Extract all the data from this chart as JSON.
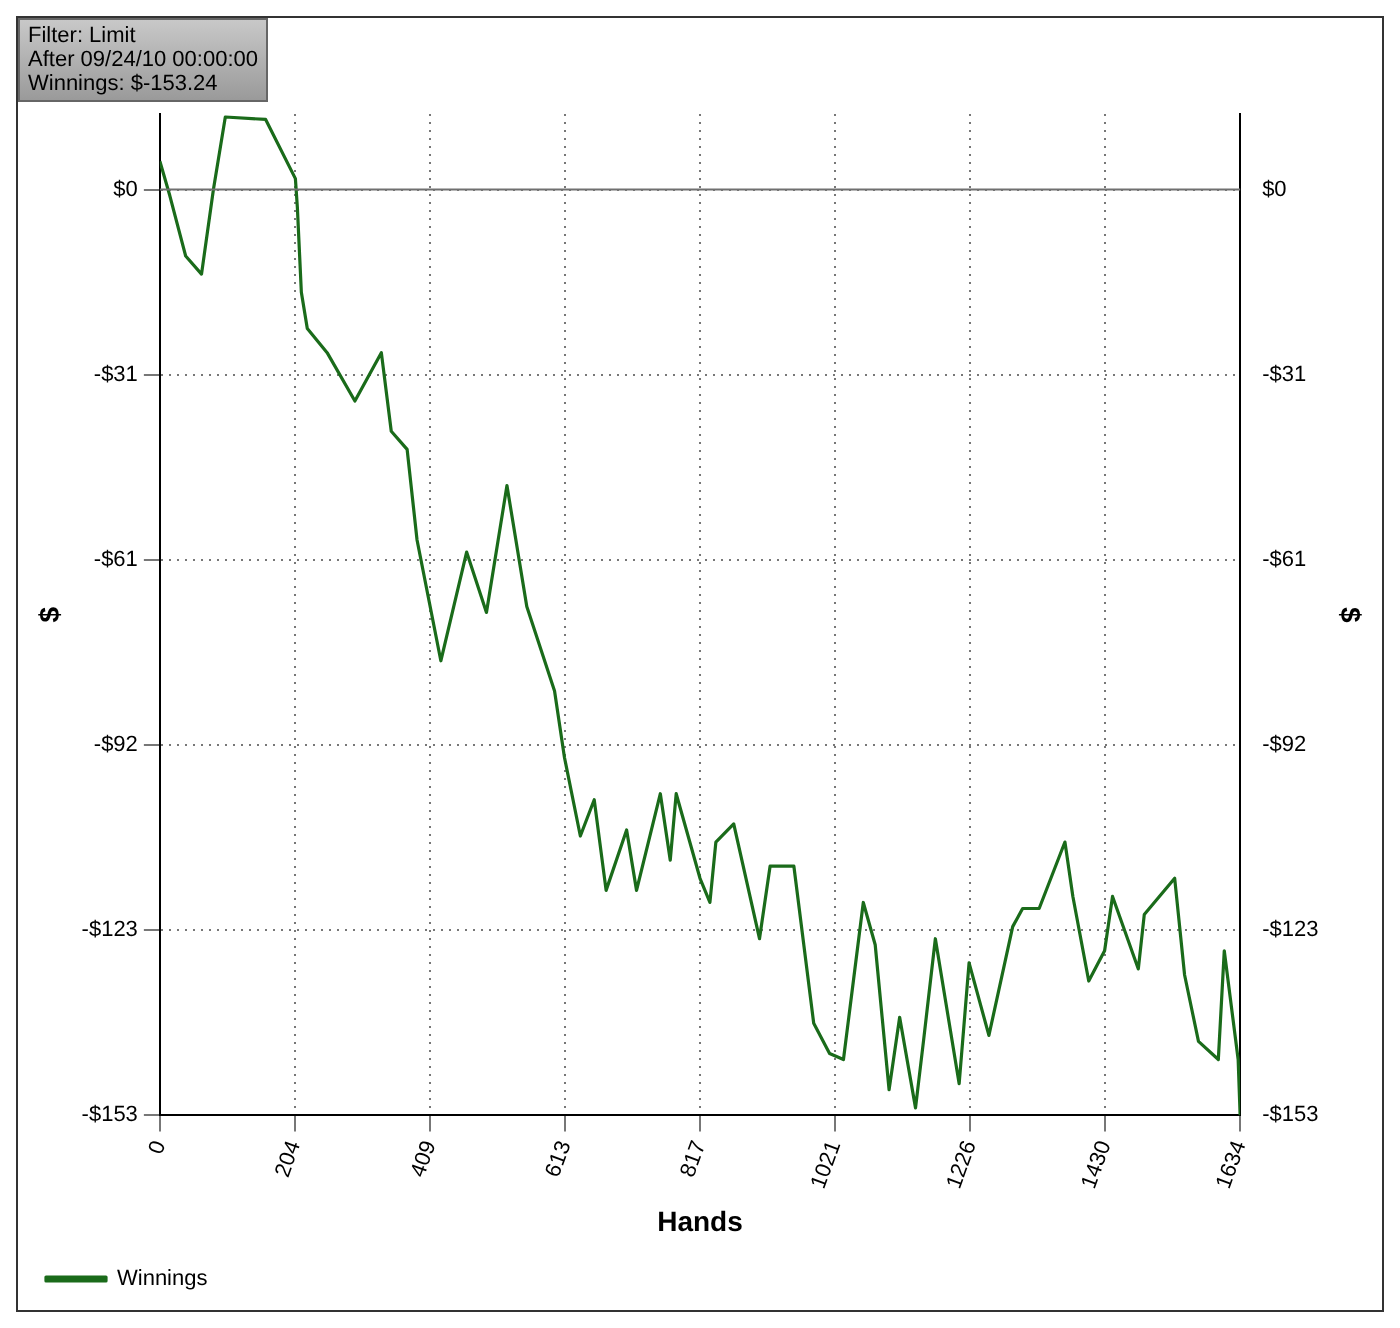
{
  "chart_data": {
    "type": "line",
    "xlabel": "Hands",
    "ylabel": "$",
    "y2label": "$",
    "annotations": [
      "Filter: Limit",
      "After 09/24/10 00:00:00",
      "Winnings: $-153.24"
    ],
    "series": [
      {
        "name": "Winnings",
        "color": "#1a6b1a",
        "x": [
          0,
          15,
          39,
          63,
          81,
          99,
          160,
          205,
          208,
          214,
          223,
          253,
          295,
          335,
          350,
          374,
          389,
          425,
          464,
          494,
          525,
          555,
          597,
          612,
          636,
          657,
          675,
          706,
          721,
          757,
          772,
          781,
          817,
          832,
          841,
          868,
          907,
          923,
          959,
          989,
          1013,
          1034,
          1064,
          1082,
          1103,
          1119,
          1143,
          1155,
          1173,
          1209,
          1224,
          1254,
          1290,
          1305,
          1330,
          1369,
          1381,
          1405,
          1429,
          1441,
          1480,
          1489,
          1535,
          1550,
          1571,
          1601,
          1610,
          1631,
          1634
        ],
        "values": [
          4.7,
          -1,
          -11,
          -14,
          0,
          12,
          11.6,
          1.8,
          -3,
          -17,
          -23,
          -27,
          -35,
          -27,
          -40,
          -43,
          -58,
          -78,
          -60,
          -70,
          -49,
          -69,
          -83,
          -94,
          -107,
          -101,
          -116,
          -106,
          -116,
          -100,
          -111,
          -100,
          -114,
          -118,
          -108,
          -105,
          -124,
          -112,
          -112,
          -138,
          -143,
          -144,
          -118,
          -125,
          -149,
          -137,
          -152,
          -141,
          -124,
          -148,
          -128,
          -140,
          -122,
          -119,
          -119,
          -108,
          -117,
          -131,
          -126,
          -117,
          -129,
          -120,
          -114,
          -130,
          -141,
          -144,
          -126,
          -144,
          -153.24
        ]
      }
    ],
    "xlim": [
      0,
      1634
    ],
    "xticks": [
      0,
      204,
      409,
      613,
      817,
      1021,
      1226,
      1430,
      1634
    ],
    "ylim": [
      -153.24,
      12.5
    ],
    "yticks": [
      {
        "value": 0,
        "label": "$0"
      },
      {
        "value": -30.65,
        "label": "-$31"
      },
      {
        "value": -61.3,
        "label": "-$61"
      },
      {
        "value": -91.94,
        "label": "-$92"
      },
      {
        "value": -122.59,
        "label": "-$123"
      },
      {
        "value": -153.24,
        "label": "-$153"
      }
    ],
    "y2lim": [
      -153.24,
      12.5
    ],
    "y2ticks": [
      {
        "value": 0,
        "label": "$0"
      },
      {
        "value": -30.65,
        "label": "-$31"
      },
      {
        "value": -61.3,
        "label": "-$61"
      },
      {
        "value": -91.94,
        "label": "-$92"
      },
      {
        "value": -122.59,
        "label": "-$123"
      },
      {
        "value": -153.24,
        "label": "-$153"
      }
    ],
    "ref_lines": [
      {
        "axis": "y",
        "value": 0,
        "color": "#707070"
      }
    ],
    "grid": true,
    "legend": "bottom left"
  }
}
